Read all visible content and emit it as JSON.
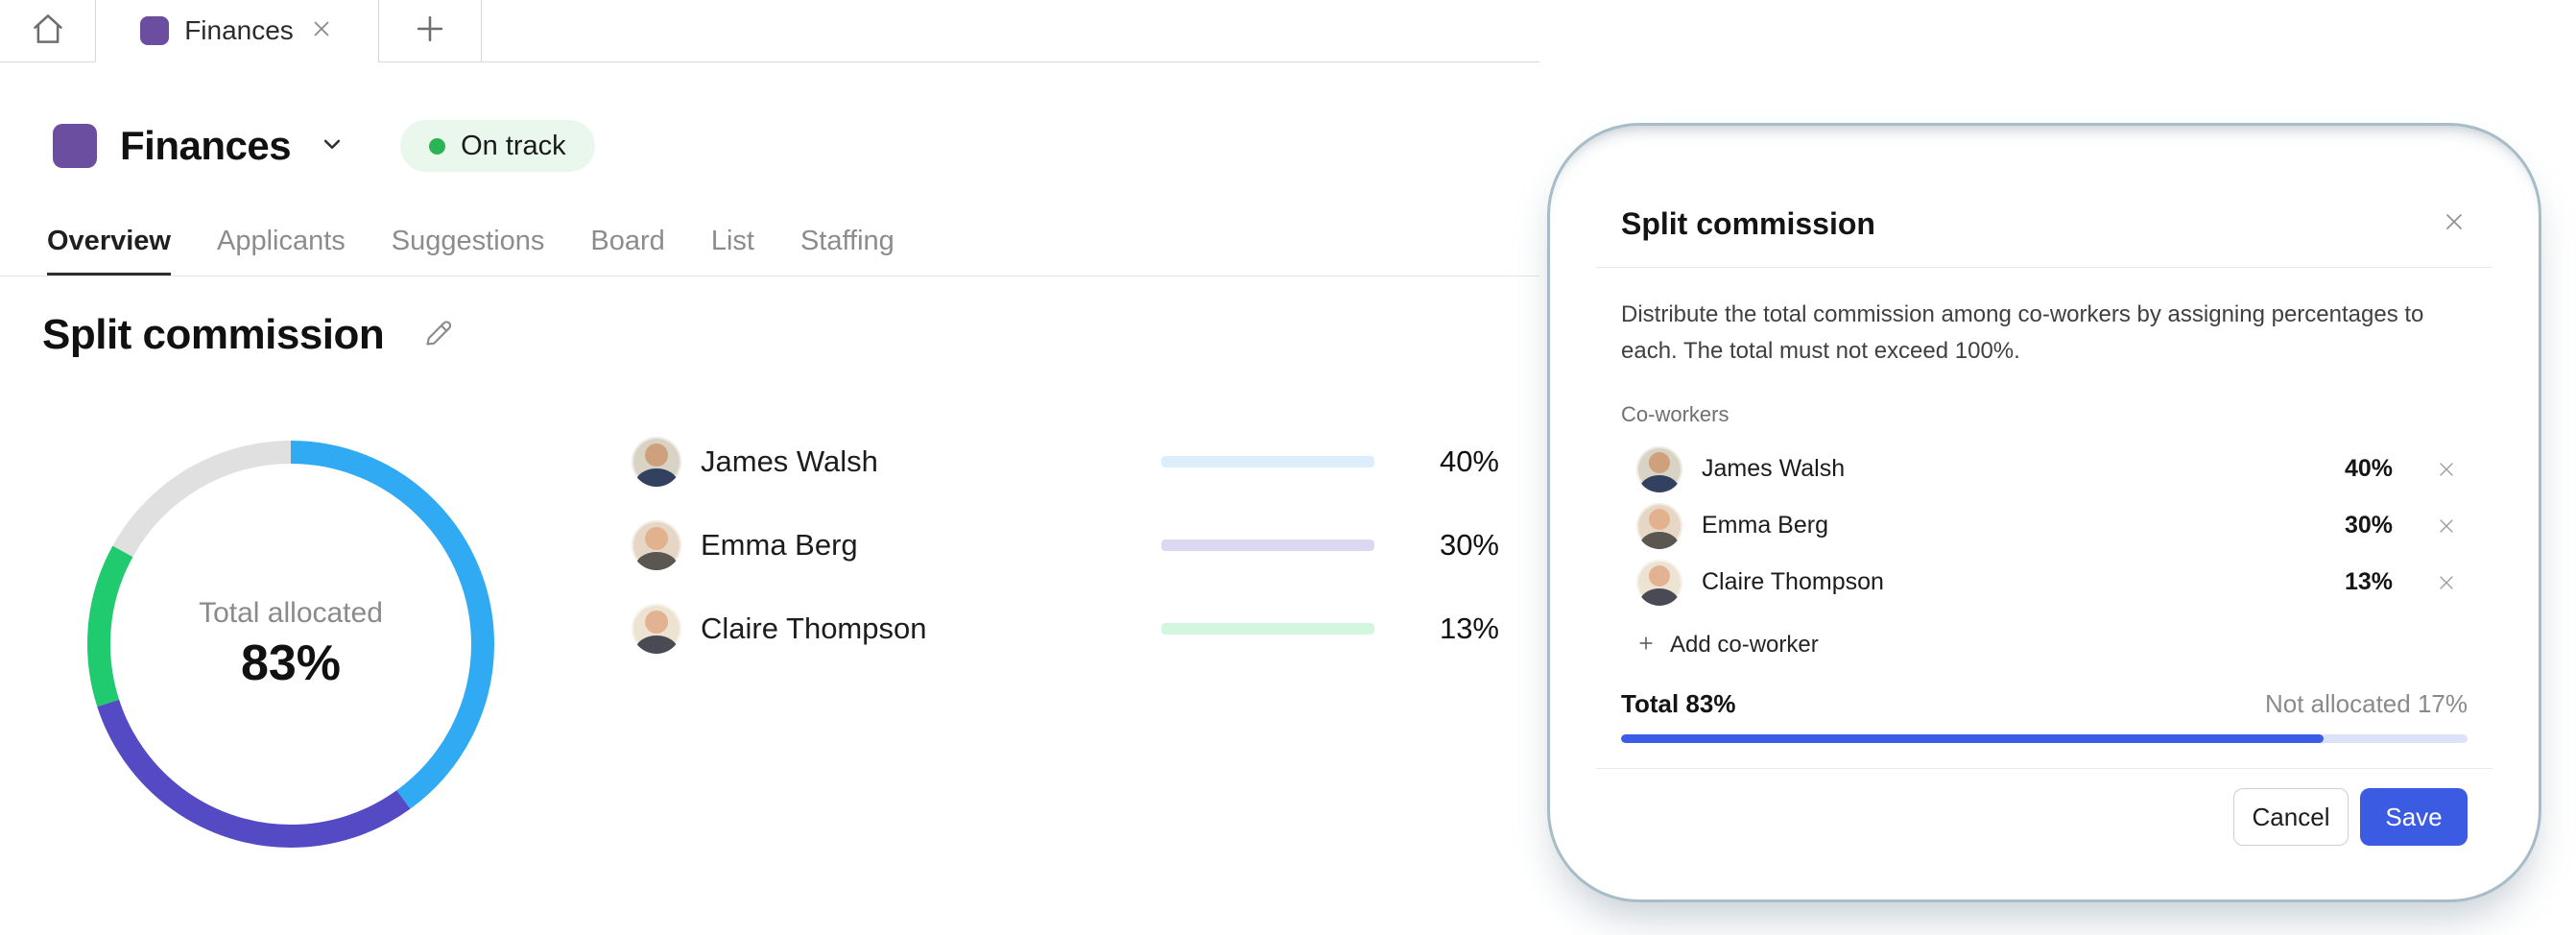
{
  "tabbar": {
    "tab_label": "Finances"
  },
  "project": {
    "title": "Finances",
    "status_label": "On track"
  },
  "nav": {
    "tabs": [
      {
        "label": "Overview"
      },
      {
        "label": "Applicants"
      },
      {
        "label": "Suggestions"
      },
      {
        "label": "Board"
      },
      {
        "label": "List"
      },
      {
        "label": "Staffing"
      }
    ],
    "active": "Overview"
  },
  "section": {
    "title": "Split commission"
  },
  "chart_data": {
    "type": "pie",
    "subtype": "donut",
    "center_label": "Total allocated",
    "center_value": "83%",
    "total_allocated_pct": 83,
    "not_allocated_pct": 17,
    "segments": [
      {
        "label": "James Walsh",
        "value": 40,
        "color": "#2FAAF3"
      },
      {
        "label": "Emma Berg",
        "value": 30,
        "color": "#544BC4"
      },
      {
        "label": "Claire Thompson",
        "value": 13,
        "color": "#1FCB6E"
      },
      {
        "label": "Not allocated",
        "value": 17,
        "color": "#E0E0E0"
      }
    ]
  },
  "coworkers": [
    {
      "name": "James Walsh",
      "pct": 40,
      "pct_label": "40%",
      "bar_color": "#2FAEF5",
      "track_color": "#DCEEFB"
    },
    {
      "name": "Emma Berg",
      "pct": 30,
      "pct_label": "30%",
      "bar_color": "#4A43B5",
      "track_color": "#DBD9F2"
    },
    {
      "name": "Claire Thompson",
      "pct": 13,
      "pct_label": "13%",
      "bar_color": "#16D163",
      "track_color": "#D2F6DE"
    }
  ],
  "modal": {
    "title": "Split commission",
    "description": "Distribute the total commission among co-workers by assigning percentages to each. The total must not exceed 100%.",
    "coworkers_label": "Co-workers",
    "rows": [
      {
        "name": "James Walsh",
        "pct_label": "40%"
      },
      {
        "name": "Emma Berg",
        "pct_label": "30%"
      },
      {
        "name": "Claire Thompson",
        "pct_label": "13%"
      }
    ],
    "add_coworker_label": "Add co-worker",
    "total_label": "Total 83%",
    "not_allocated_label": "Not allocated 17%",
    "progress": {
      "value": 83,
      "fill_color": "#3B5CE6",
      "track_color": "#DCE3F8"
    },
    "cancel_label": "Cancel",
    "save_label": "Save"
  },
  "colors": {
    "brand_purple": "#6B4E9F",
    "status_green": "#2CB454",
    "status_bg": "#E9F7EC",
    "save_blue": "#3C5BE3"
  }
}
